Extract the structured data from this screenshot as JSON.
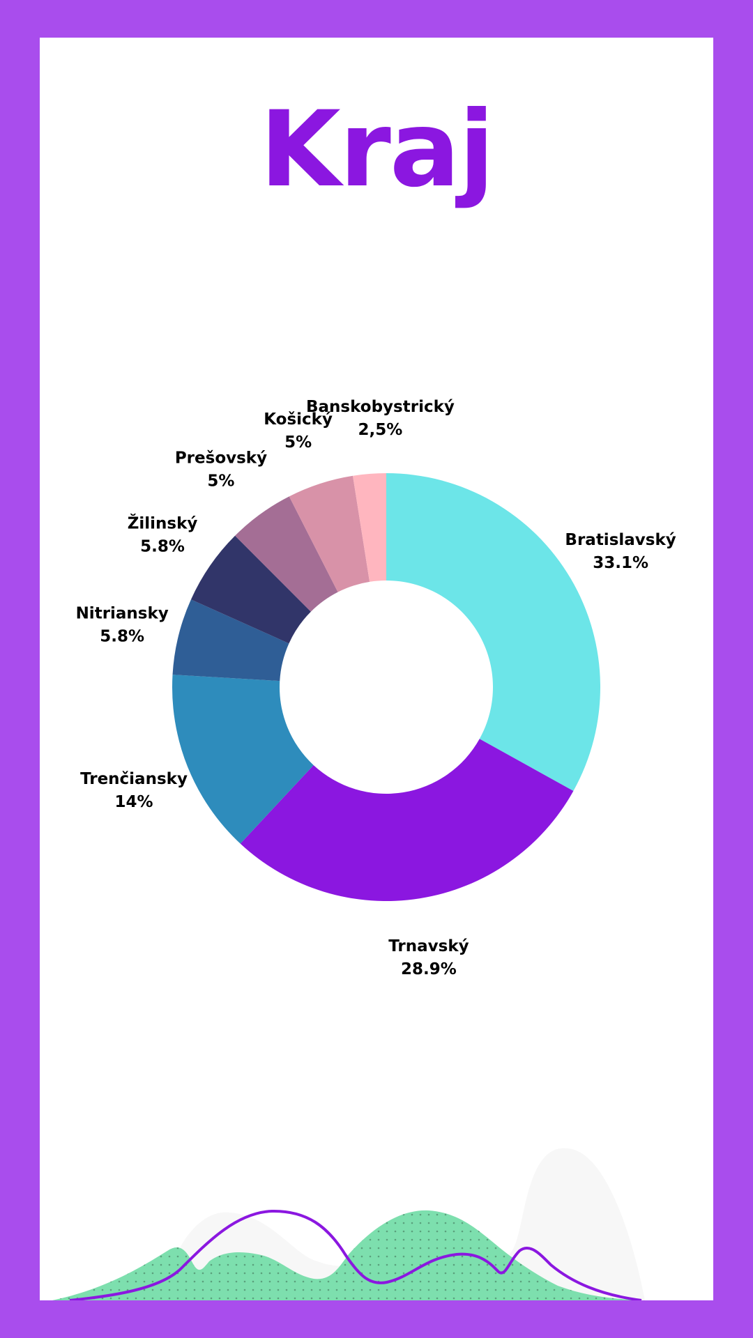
{
  "page": {
    "background": "#a94ded",
    "card_background": "#ffffff",
    "title_color": "#8b17e0"
  },
  "chart_data": {
    "type": "pie",
    "donut": true,
    "title": "Kraj",
    "slices": [
      {
        "label": "Bratislavský",
        "value": 33.1,
        "value_label": "33.1%",
        "color": "#6ce5e8"
      },
      {
        "label": "Trnavský",
        "value": 28.9,
        "value_label": "28.9%",
        "color": "#8b17e0"
      },
      {
        "label": "Trenčiansky",
        "value": 14,
        "value_label": "14%",
        "color": "#2e8cbc"
      },
      {
        "label": "Nitriansky",
        "value": 5.8,
        "value_label": "5.8%",
        "color": "#2f5e96"
      },
      {
        "label": "Žilinský",
        "value": 5.8,
        "value_label": "5.8%",
        "color": "#313569"
      },
      {
        "label": "Prešovský",
        "value": 5,
        "value_label": "5%",
        "color": "#a46e95"
      },
      {
        "label": "Košický",
        "value": 5,
        "value_label": "5%",
        "color": "#d892a8"
      },
      {
        "label": "Banskobystrický",
        "value": 2.5,
        "value_label": "2,5%",
        "color": "#ffb6bf"
      }
    ]
  },
  "decoration": {
    "wave_fill_color": "#7ddfae",
    "wave_line_color": "#8b17e0",
    "backdrop_color": "#f7f7f7"
  }
}
